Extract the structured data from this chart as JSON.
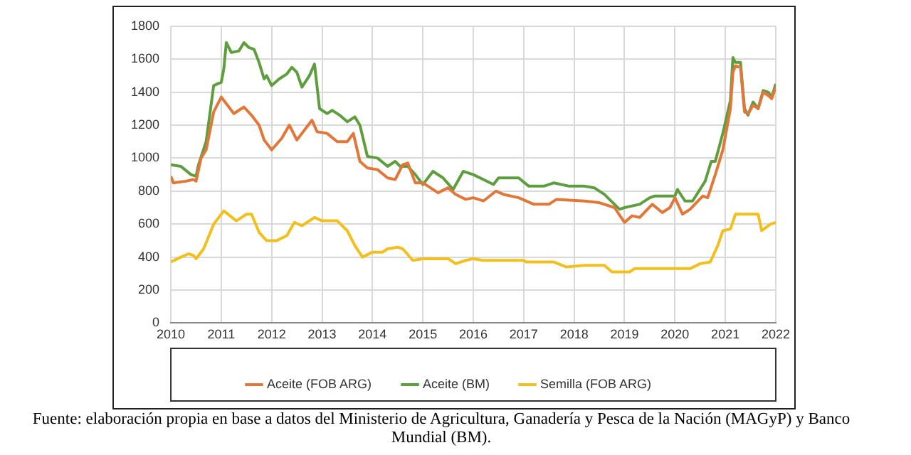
{
  "chart_data": {
    "type": "line",
    "annotations": [
      "Fuente: elaboración propia en base a datos del Ministerio de Agricultura, Ganadería y Pesca de la Nación (MAGyP) y Banco Mundial (BM)."
    ],
    "xlim": [
      2010,
      2022
    ],
    "xticks": [
      2010,
      2011,
      2012,
      2013,
      2014,
      2015,
      2016,
      2017,
      2018,
      2019,
      2020,
      2021,
      2022
    ],
    "ylim": [
      0,
      1800
    ],
    "yticks": [
      0,
      200,
      400,
      600,
      800,
      1000,
      1200,
      1400,
      1600,
      1800
    ],
    "grid": true,
    "legend": "bottom",
    "marker": "none",
    "line_style": "solid",
    "series": [
      {
        "name": "Aceite (FOB ARG)",
        "color": "#e2773a",
        "x": [
          2010.0,
          2010.05,
          2010.3,
          2010.45,
          2010.5,
          2010.6,
          2010.7,
          2010.85,
          2011.0,
          2011.15,
          2011.25,
          2011.45,
          2011.6,
          2011.75,
          2011.85,
          2012.0,
          2012.2,
          2012.35,
          2012.5,
          2012.8,
          2012.9,
          2013.1,
          2013.3,
          2013.5,
          2013.62,
          2013.75,
          2013.9,
          2014.1,
          2014.3,
          2014.45,
          2014.6,
          2014.7,
          2014.85,
          2015.0,
          2015.3,
          2015.5,
          2015.65,
          2015.85,
          2016.0,
          2016.2,
          2016.45,
          2016.6,
          2016.9,
          2017.2,
          2017.5,
          2017.65,
          2018.2,
          2018.5,
          2018.8,
          2019.0,
          2019.15,
          2019.3,
          2019.55,
          2019.75,
          2019.9,
          2020.0,
          2020.15,
          2020.3,
          2020.55,
          2020.65,
          2020.8,
          2020.95,
          2021.1,
          2021.15,
          2021.2,
          2021.3,
          2021.38,
          2021.45,
          2021.55,
          2021.65,
          2021.75,
          2021.85,
          2021.92,
          2022.0
        ],
        "values": [
          890,
          850,
          860,
          870,
          860,
          1000,
          1050,
          1280,
          1370,
          1310,
          1270,
          1310,
          1260,
          1200,
          1110,
          1050,
          1120,
          1200,
          1110,
          1230,
          1160,
          1150,
          1100,
          1100,
          1150,
          980,
          940,
          930,
          880,
          870,
          960,
          970,
          850,
          850,
          790,
          820,
          780,
          750,
          760,
          740,
          800,
          780,
          760,
          720,
          720,
          750,
          740,
          730,
          700,
          610,
          650,
          640,
          720,
          670,
          700,
          760,
          660,
          690,
          770,
          760,
          900,
          1050,
          1300,
          1520,
          1560,
          1550,
          1280,
          1270,
          1320,
          1300,
          1400,
          1380,
          1360,
          1430
        ]
      },
      {
        "name": "Aceite (BM)",
        "color": "#5f9e3f",
        "x": [
          2010.0,
          2010.2,
          2010.4,
          2010.5,
          2010.55,
          2010.7,
          2010.85,
          2011.0,
          2011.05,
          2011.1,
          2011.2,
          2011.35,
          2011.45,
          2011.55,
          2011.65,
          2011.75,
          2011.85,
          2011.9,
          2012.0,
          2012.15,
          2012.3,
          2012.4,
          2012.5,
          2012.6,
          2012.75,
          2012.85,
          2012.95,
          2013.1,
          2013.2,
          2013.35,
          2013.5,
          2013.65,
          2013.75,
          2013.9,
          2014.1,
          2014.3,
          2014.45,
          2014.55,
          2014.7,
          2014.85,
          2015.0,
          2015.2,
          2015.4,
          2015.6,
          2015.8,
          2016.0,
          2016.2,
          2016.4,
          2016.5,
          2016.9,
          2017.1,
          2017.4,
          2017.6,
          2017.9,
          2018.2,
          2018.4,
          2018.6,
          2018.9,
          2019.0,
          2019.3,
          2019.5,
          2019.6,
          2020.0,
          2020.05,
          2020.2,
          2020.35,
          2020.6,
          2020.72,
          2020.8,
          2020.95,
          2021.1,
          2021.15,
          2021.2,
          2021.3,
          2021.38,
          2021.45,
          2021.55,
          2021.65,
          2021.75,
          2021.85,
          2021.92,
          2022.0
        ],
        "values": [
          960,
          950,
          900,
          890,
          960,
          1100,
          1440,
          1460,
          1540,
          1700,
          1640,
          1650,
          1700,
          1670,
          1660,
          1580,
          1480,
          1500,
          1440,
          1480,
          1510,
          1550,
          1520,
          1430,
          1500,
          1570,
          1300,
          1270,
          1290,
          1260,
          1220,
          1250,
          1200,
          1010,
          1000,
          950,
          980,
          950,
          950,
          900,
          840,
          920,
          880,
          810,
          920,
          900,
          870,
          840,
          880,
          880,
          830,
          830,
          850,
          830,
          830,
          820,
          780,
          690,
          700,
          720,
          760,
          770,
          770,
          810,
          740,
          740,
          860,
          980,
          980,
          1150,
          1350,
          1610,
          1580,
          1580,
          1300,
          1260,
          1340,
          1300,
          1410,
          1400,
          1370,
          1450
        ]
      },
      {
        "name": "Semilla (FOB ARG)",
        "color": "#f2c01e",
        "x": [
          2010.0,
          2010.2,
          2010.35,
          2010.45,
          2010.5,
          2010.65,
          2010.85,
          2011.05,
          2011.3,
          2011.5,
          2011.6,
          2011.75,
          2011.9,
          2012.1,
          2012.3,
          2012.45,
          2012.6,
          2012.85,
          2013.0,
          2013.3,
          2013.5,
          2013.65,
          2013.8,
          2014.0,
          2014.2,
          2014.3,
          2014.5,
          2014.6,
          2014.8,
          2015.0,
          2015.5,
          2015.65,
          2015.85,
          2016.0,
          2016.2,
          2017.0,
          2017.05,
          2017.6,
          2017.85,
          2018.2,
          2018.6,
          2018.75,
          2019.1,
          2019.2,
          2020.3,
          2020.5,
          2020.7,
          2020.85,
          2020.95,
          2021.1,
          2021.2,
          2021.65,
          2021.72,
          2021.9,
          2022.0
        ],
        "values": [
          370,
          400,
          420,
          410,
          390,
          450,
          600,
          680,
          620,
          660,
          660,
          550,
          500,
          500,
          530,
          610,
          590,
          640,
          620,
          620,
          560,
          470,
          400,
          430,
          430,
          450,
          460,
          450,
          380,
          390,
          390,
          360,
          380,
          390,
          380,
          380,
          370,
          370,
          340,
          350,
          350,
          310,
          310,
          330,
          330,
          360,
          370,
          470,
          560,
          570,
          660,
          660,
          560,
          600,
          610
        ]
      }
    ]
  }
}
